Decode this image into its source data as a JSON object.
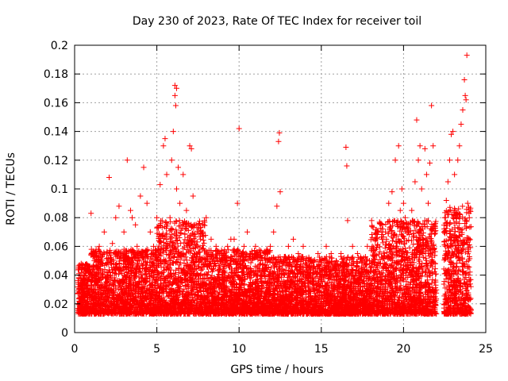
{
  "chart_data": {
    "type": "scatter",
    "title": "Day 230 of 2023, Rate Of TEC Index for receiver toil",
    "xlabel": "GPS time / hours",
    "ylabel": "ROTI / TECUs",
    "xlim": [
      0,
      25
    ],
    "ylim": [
      0,
      0.2
    ],
    "xticks": [
      "0",
      "5",
      "10",
      "15",
      "20",
      "25"
    ],
    "yticks": [
      "0",
      "0.02",
      "0.04",
      "0.06",
      "0.08",
      "0.1",
      "0.12",
      "0.14",
      "0.16",
      "0.18",
      "0.2"
    ],
    "grid": true,
    "marker": "+",
    "color": "#ff0000",
    "series": [
      {
        "x": [
          0.4,
          0.6,
          1.0,
          1.2,
          1.5,
          1.8,
          2.1,
          2.3,
          2.5,
          2.7,
          3.0,
          3.2,
          3.4,
          3.5,
          3.7,
          3.8,
          4.0,
          4.2,
          4.4,
          4.6,
          4.8,
          5.0,
          5.2,
          5.4,
          5.5,
          5.6,
          5.8,
          5.9,
          6.0,
          6.1,
          6.1,
          6.15,
          6.2,
          6.2,
          6.3,
          6.4,
          6.6,
          6.8,
          7.0,
          7.1,
          7.2,
          7.3,
          7.5,
          7.8,
          8.0,
          8.3,
          8.6,
          8.8,
          9.0,
          9.3,
          9.5,
          9.7,
          9.9,
          10.0,
          10.3,
          10.5,
          10.8,
          11.0,
          11.3,
          11.6,
          11.9,
          12.1,
          12.3,
          12.4,
          12.45,
          12.5,
          12.8,
          13.0,
          13.3,
          13.6,
          13.9,
          14.2,
          14.5,
          14.8,
          15.0,
          15.3,
          15.6,
          15.9,
          16.2,
          16.5,
          16.55,
          16.6,
          16.9,
          17.2,
          17.5,
          17.8,
          18.1,
          18.4,
          18.7,
          18.9,
          19.1,
          19.3,
          19.5,
          19.7,
          19.8,
          19.9,
          20.0,
          20.1,
          20.3,
          20.5,
          20.7,
          20.8,
          20.9,
          21.0,
          21.1,
          21.3,
          21.4,
          21.5,
          21.6,
          21.7,
          21.8,
          21.9,
          22.5,
          22.6,
          22.7,
          22.8,
          22.9,
          23.0,
          23.1,
          23.3,
          23.4,
          23.5,
          23.6,
          23.7,
          23.75,
          23.8,
          23.85,
          23.9,
          24.0
        ],
        "y": [
          0.048,
          0.045,
          0.083,
          0.05,
          0.06,
          0.07,
          0.108,
          0.062,
          0.08,
          0.088,
          0.07,
          0.12,
          0.085,
          0.08,
          0.075,
          0.06,
          0.095,
          0.115,
          0.09,
          0.07,
          0.06,
          0.08,
          0.103,
          0.13,
          0.135,
          0.11,
          0.08,
          0.12,
          0.14,
          0.172,
          0.165,
          0.158,
          0.17,
          0.1,
          0.115,
          0.09,
          0.11,
          0.085,
          0.13,
          0.128,
          0.095,
          0.075,
          0.06,
          0.07,
          0.08,
          0.065,
          0.06,
          0.055,
          0.05,
          0.06,
          0.065,
          0.065,
          0.09,
          0.142,
          0.06,
          0.07,
          0.055,
          0.06,
          0.05,
          0.055,
          0.06,
          0.07,
          0.088,
          0.133,
          0.139,
          0.098,
          0.05,
          0.06,
          0.065,
          0.055,
          0.06,
          0.05,
          0.045,
          0.055,
          0.05,
          0.06,
          0.055,
          0.05,
          0.055,
          0.129,
          0.116,
          0.078,
          0.06,
          0.055,
          0.05,
          0.06,
          0.06,
          0.07,
          0.065,
          0.07,
          0.09,
          0.098,
          0.12,
          0.13,
          0.085,
          0.1,
          0.09,
          0.08,
          0.07,
          0.085,
          0.105,
          0.148,
          0.12,
          0.13,
          0.1,
          0.128,
          0.11,
          0.09,
          0.118,
          0.158,
          0.13,
          0.075,
          0.08,
          0.092,
          0.105,
          0.12,
          0.138,
          0.14,
          0.11,
          0.12,
          0.13,
          0.145,
          0.155,
          0.176,
          0.165,
          0.162,
          0.193,
          0.09,
          0.08
        ]
      }
    ],
    "dense_band": {
      "description_values": "baseline noise of ROTI points across the day",
      "x_range": [
        0.2,
        24.1
      ],
      "y_typical": [
        0.005,
        0.045
      ]
    }
  }
}
